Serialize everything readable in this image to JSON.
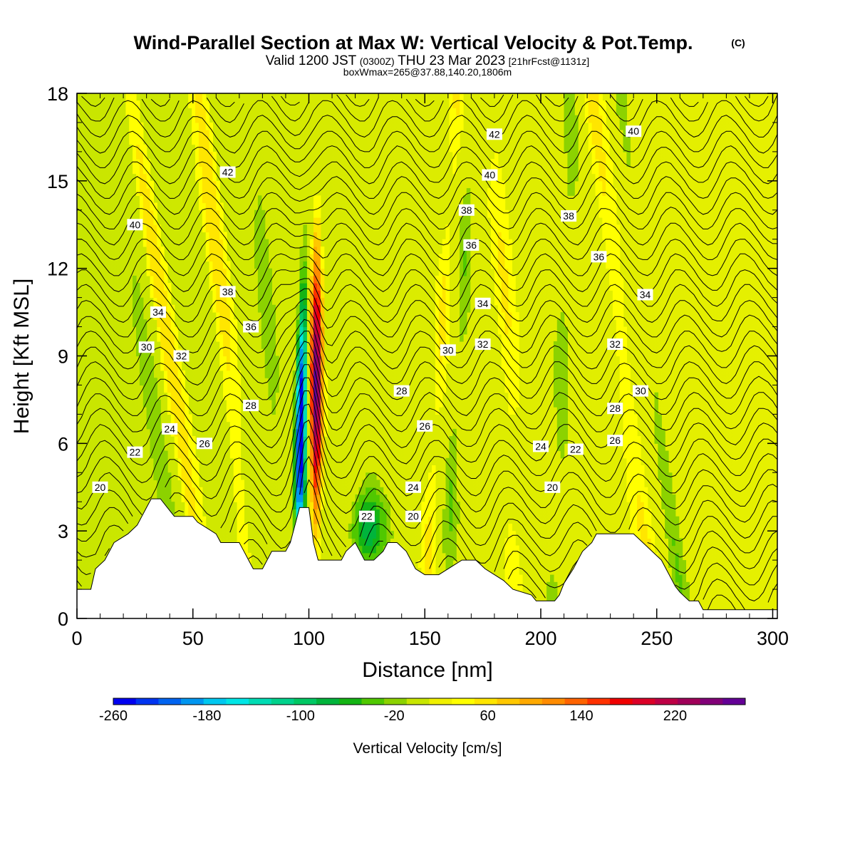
{
  "chart_data": {
    "type": "heatmap",
    "title": "Wind-Parallel Section at Max W: Vertical Velocity & Pot.Temp.",
    "title_mark": "(C)",
    "subtitle_parts": [
      "Valid 1200 JST",
      "(0300Z)",
      "THU 23 Mar 2023",
      "[21hrFcst@1131z]"
    ],
    "subtitle2": "boxWmax=265@37.88,140.20,1806m",
    "xlabel": "Distance [nm]",
    "ylabel": "Height [Kft MSL]",
    "xlim": [
      0,
      302
    ],
    "ylim": [
      0,
      18
    ],
    "x_ticks": [
      0,
      50,
      100,
      150,
      200,
      250,
      300
    ],
    "y_ticks": [
      0,
      3,
      6,
      9,
      12,
      15,
      18
    ],
    "colorbar": {
      "label": "Vertical Velocity [cm/s]",
      "min": -260,
      "max": 280,
      "ticks": [
        -260,
        -180,
        -100,
        -20,
        60,
        140,
        220
      ],
      "colors": [
        "#0000f0",
        "#0034f0",
        "#0064f0",
        "#0096f0",
        "#00c8f0",
        "#00e6e6",
        "#00dcb4",
        "#00d28c",
        "#00c864",
        "#00b43c",
        "#14b414",
        "#50c800",
        "#8cd200",
        "#c8e600",
        "#f0f000",
        "#ffff00",
        "#ffe600",
        "#ffc800",
        "#ffaa00",
        "#ff8c00",
        "#ff6400",
        "#ff3200",
        "#f00000",
        "#dc0028",
        "#be0046",
        "#a0005a",
        "#820078",
        "#640096"
      ]
    },
    "theta_contour_labels": [
      "20",
      "22",
      "24",
      "26",
      "28",
      "30",
      "32",
      "34",
      "36",
      "38",
      "40",
      "42"
    ],
    "terrain_kft": [
      [
        0,
        1
      ],
      [
        6,
        1
      ],
      [
        8,
        1.7
      ],
      [
        12,
        2
      ],
      [
        16,
        2.6
      ],
      [
        22,
        2.9
      ],
      [
        26,
        3.2
      ],
      [
        28,
        3.5
      ],
      [
        30,
        3.8
      ],
      [
        32,
        4.1
      ],
      [
        36,
        4.1
      ],
      [
        39,
        3.8
      ],
      [
        42,
        3.5
      ],
      [
        50,
        3.5
      ],
      [
        52,
        3.3
      ],
      [
        56,
        3.1
      ],
      [
        60,
        2.9
      ],
      [
        62,
        2.6
      ],
      [
        70,
        2.6
      ],
      [
        72,
        2.3
      ],
      [
        74,
        2
      ],
      [
        76,
        1.7
      ],
      [
        80,
        1.7
      ],
      [
        82,
        2
      ],
      [
        84,
        2.3
      ],
      [
        90,
        2.3
      ],
      [
        92,
        2.6
      ],
      [
        94,
        3.2
      ],
      [
        96,
        3.8
      ],
      [
        100,
        3.8
      ],
      [
        101,
        3.2
      ],
      [
        102,
        2.6
      ],
      [
        104,
        2
      ],
      [
        108,
        2
      ],
      [
        110,
        2
      ],
      [
        114,
        2
      ],
      [
        116,
        2.3
      ],
      [
        120,
        2.6
      ],
      [
        122,
        2.3
      ],
      [
        124,
        2
      ],
      [
        128,
        2
      ],
      [
        132,
        2.3
      ],
      [
        134,
        2.6
      ],
      [
        138,
        2.6
      ],
      [
        142,
        2.3
      ],
      [
        146,
        1.7
      ],
      [
        150,
        1.5
      ],
      [
        156,
        1.5
      ],
      [
        160,
        1.7
      ],
      [
        166,
        2
      ],
      [
        172,
        2
      ],
      [
        176,
        1.7
      ],
      [
        180,
        1.5
      ],
      [
        184,
        1.3
      ],
      [
        188,
        1
      ],
      [
        196,
        0.8
      ],
      [
        198,
        0.6
      ],
      [
        206,
        0.6
      ],
      [
        208,
        0.8
      ],
      [
        210,
        1.2
      ],
      [
        214,
        1.7
      ],
      [
        218,
        2.3
      ],
      [
        222,
        2.6
      ],
      [
        224,
        2.9
      ],
      [
        240,
        2.9
      ],
      [
        244,
        2.6
      ],
      [
        248,
        2.3
      ],
      [
        252,
        2
      ],
      [
        254,
        1.7
      ],
      [
        256,
        1.4
      ],
      [
        258,
        1.1
      ],
      [
        260,
        0.9
      ],
      [
        264,
        0.6
      ],
      [
        268,
        0.6
      ],
      [
        270,
        0.3
      ],
      [
        302,
        0.3
      ]
    ]
  }
}
